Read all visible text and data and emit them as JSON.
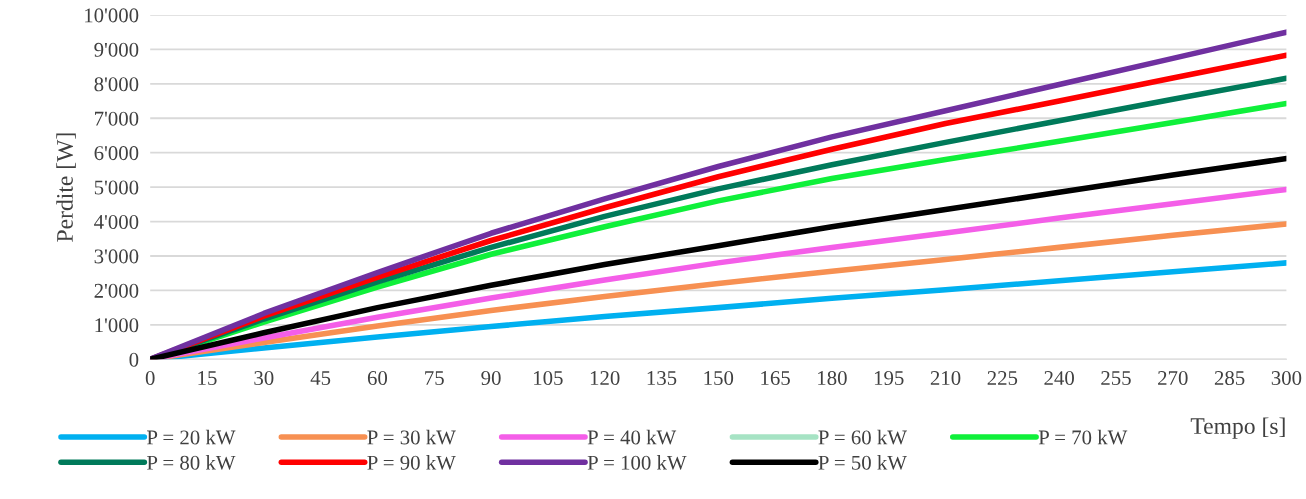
{
  "chart_data": {
    "type": "line",
    "xlabel": "Tempo [s]",
    "ylabel": "Perdite [W]",
    "x": [
      0,
      30,
      60,
      90,
      120,
      150,
      180,
      210,
      240,
      270,
      300
    ],
    "series": [
      {
        "name": "P = 20 kW",
        "color": "#00b0f0",
        "values": [
          0,
          330,
          650,
          950,
          1240,
          1500,
          1770,
          2020,
          2280,
          2540,
          2800
        ]
      },
      {
        "name": "P = 30 kW",
        "color": "#f79052",
        "values": [
          0,
          490,
          970,
          1420,
          1820,
          2200,
          2560,
          2900,
          3250,
          3600,
          3930
        ]
      },
      {
        "name": "P = 40 kW",
        "color": "#f45ee8",
        "values": [
          0,
          620,
          1220,
          1780,
          2300,
          2800,
          3250,
          3670,
          4100,
          4520,
          4930
        ]
      },
      {
        "name": "P = 60 kW",
        "color": "#a6e3c4",
        "values": [
          null,
          null,
          null,
          null,
          null,
          null,
          null,
          null,
          null,
          null,
          null
        ]
      },
      {
        "name": "P = 70 kW",
        "color": "#0ff03a",
        "values": [
          0,
          1080,
          2100,
          3050,
          3850,
          4600,
          5250,
          5800,
          6330,
          6880,
          7430
        ]
      },
      {
        "name": "P = 80 kW",
        "color": "#007a5a",
        "values": [
          0,
          1170,
          2250,
          3250,
          4150,
          4950,
          5650,
          6300,
          6930,
          7550,
          8160
        ]
      },
      {
        "name": "P = 90 kW",
        "color": "#ff0000",
        "values": [
          0,
          1250,
          2380,
          3450,
          4400,
          5300,
          6100,
          6850,
          7500,
          8170,
          8830
        ]
      },
      {
        "name": "P = 100 kW",
        "color": "#7030a0",
        "values": [
          0,
          1330,
          2520,
          3660,
          4660,
          5600,
          6460,
          7220,
          7980,
          8740,
          9500
        ]
      },
      {
        "name": "P = 50 kW",
        "color": "#000000",
        "values": [
          0,
          770,
          1500,
          2150,
          2750,
          3300,
          3850,
          4350,
          4850,
          5350,
          5830
        ]
      }
    ],
    "xlim": [
      0,
      300
    ],
    "xticks": [
      0,
      15,
      30,
      45,
      60,
      75,
      90,
      105,
      120,
      135,
      150,
      165,
      180,
      195,
      210,
      225,
      240,
      255,
      270,
      285,
      300
    ],
    "ylim": [
      0,
      10000
    ],
    "yticks": [
      {
        "value": 0,
        "label": "0"
      },
      {
        "value": 1000,
        "label": "1'000"
      },
      {
        "value": 2000,
        "label": "2'000"
      },
      {
        "value": 3000,
        "label": "3'000"
      },
      {
        "value": 4000,
        "label": "4'000"
      },
      {
        "value": 5000,
        "label": "5'000"
      },
      {
        "value": 6000,
        "label": "6'000"
      },
      {
        "value": 7000,
        "label": "7'000"
      },
      {
        "value": 8000,
        "label": "8'000"
      },
      {
        "value": 9000,
        "label": "9'000"
      },
      {
        "value": 10000,
        "label": "10'000"
      }
    ],
    "grid": "y",
    "legend": "bottom",
    "line_style": "solid"
  }
}
